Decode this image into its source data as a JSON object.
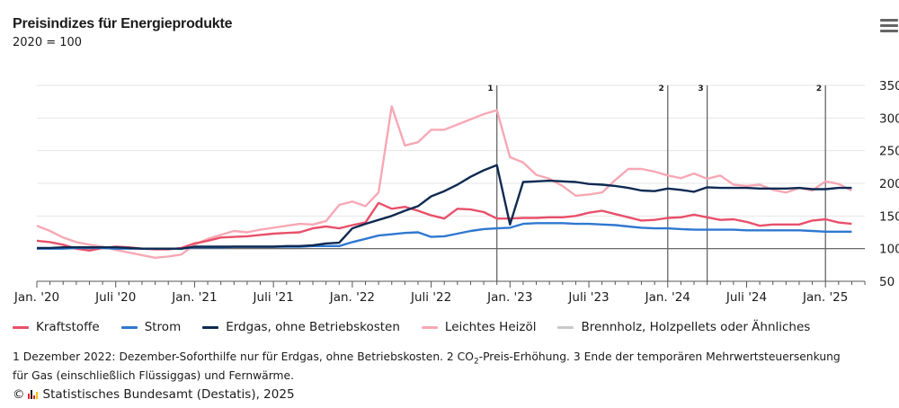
{
  "header": {
    "title": "Preisindizes für Energieprodukte",
    "subtitle": "2020 = 100",
    "menu_icon": "hamburger-menu-icon"
  },
  "chart_data": {
    "type": "line",
    "title": "Preisindizes für Energieprodukte",
    "subtitle": "2020 = 100",
    "xlabel": "",
    "ylabel": "",
    "ylim": [
      50,
      350
    ],
    "yticks": [
      50,
      100,
      150,
      200,
      250,
      300,
      350
    ],
    "y_axis_side": "right",
    "grid": true,
    "baseline": 100,
    "x_start": "2020-01",
    "x_end": "2025-03",
    "xtick_labels": [
      {
        "month_index": 0,
        "label": "Jan. '20"
      },
      {
        "month_index": 6,
        "label": "Juli '20"
      },
      {
        "month_index": 12,
        "label": "Jan. '21"
      },
      {
        "month_index": 18,
        "label": "Juli '21"
      },
      {
        "month_index": 24,
        "label": "Jan. '22"
      },
      {
        "month_index": 30,
        "label": "Juli '22"
      },
      {
        "month_index": 36,
        "label": "Jan. '23"
      },
      {
        "month_index": 42,
        "label": "Juli '23"
      },
      {
        "month_index": 48,
        "label": "Jan. '24"
      },
      {
        "month_index": 54,
        "label": "Juli '24"
      },
      {
        "month_index": 60,
        "label": "Jan. '25"
      }
    ],
    "annotations": [
      {
        "month_index": 35,
        "label": "1"
      },
      {
        "month_index": 48,
        "label": "2"
      },
      {
        "month_index": 51,
        "label": "3"
      },
      {
        "month_index": 60,
        "label": "2"
      }
    ],
    "legend_position": "bottom",
    "series": [
      {
        "name": "Kraftstoffe",
        "color": "#e8506a",
        "values": [
          112,
          110,
          106,
          100,
          97,
          101,
          103,
          102,
          100,
          99,
          99,
          101,
          108,
          112,
          117,
          118,
          119,
          121,
          123,
          124,
          125,
          131,
          134,
          131,
          136,
          140,
          170,
          161,
          164,
          158,
          151,
          146,
          161,
          160,
          156,
          146,
          146,
          147,
          147,
          148,
          148,
          150,
          155,
          158,
          153,
          148,
          143,
          144,
          147,
          148,
          152,
          148,
          144,
          145,
          141,
          135,
          137,
          137,
          137,
          143,
          145,
          140,
          138
        ]
      },
      {
        "name": "Strom",
        "color": "#2f78d0",
        "values": [
          100,
          100,
          100,
          101,
          101,
          101,
          100,
          100,
          100,
          100,
          100,
          100,
          102,
          102,
          102,
          103,
          103,
          103,
          103,
          103,
          103,
          104,
          104,
          104,
          110,
          115,
          120,
          122,
          124,
          125,
          118,
          119,
          123,
          127,
          130,
          131,
          132,
          138,
          139,
          139,
          139,
          138,
          138,
          137,
          136,
          134,
          132,
          131,
          131,
          130,
          129,
          129,
          129,
          129,
          128,
          128,
          128,
          128,
          128,
          127,
          126,
          126,
          126
        ]
      },
      {
        "name": "Erdgas, ohne Betriebskosten",
        "color": "#0e2a52",
        "values": [
          101,
          101,
          102,
          102,
          102,
          102,
          102,
          101,
          100,
          100,
          100,
          100,
          103,
          103,
          103,
          103,
          103,
          103,
          103,
          104,
          104,
          105,
          108,
          109,
          131,
          138,
          144,
          150,
          158,
          165,
          180,
          188,
          198,
          210,
          220,
          228,
          137,
          202,
          203,
          204,
          203,
          202,
          199,
          198,
          196,
          193,
          189,
          188,
          192,
          190,
          187,
          194,
          193,
          193,
          193,
          192,
          192,
          192,
          193,
          191,
          191,
          193,
          193
        ]
      },
      {
        "name": "Leichtes Heizöl",
        "color": "#f7a8b4",
        "values": [
          135,
          127,
          117,
          110,
          106,
          103,
          98,
          94,
          90,
          86,
          88,
          91,
          106,
          115,
          121,
          127,
          125,
          129,
          132,
          135,
          138,
          137,
          142,
          167,
          172,
          165,
          186,
          318,
          258,
          263,
          282,
          282,
          290,
          298,
          306,
          312,
          240,
          232,
          213,
          207,
          196,
          181,
          183,
          186,
          205,
          222,
          222,
          218,
          212,
          208,
          215,
          207,
          212,
          198,
          196,
          198,
          190,
          186,
          193,
          189,
          203,
          199,
          189
        ]
      },
      {
        "name": "Brennholz, Holzpellets oder Ähnliches",
        "color": "#c8c8c8",
        "values": []
      }
    ]
  },
  "footnote": {
    "part1": "1 Dezember 2022: Dezember-Soforthilfe nur für Erdgas, ohne Betriebskosten. 2 CO",
    "sub": "2",
    "part2": "-Preis-Erhöhung. 3 Ende der temporären Mehrwertsteuersenkung für Gas (einschließlich Flüssiggas) und Fernwärme."
  },
  "credit": {
    "copyright": "©",
    "logo_icon": "destatis-logo-icon",
    "text": "Statistisches Bundesamt (Destatis), 2025"
  }
}
